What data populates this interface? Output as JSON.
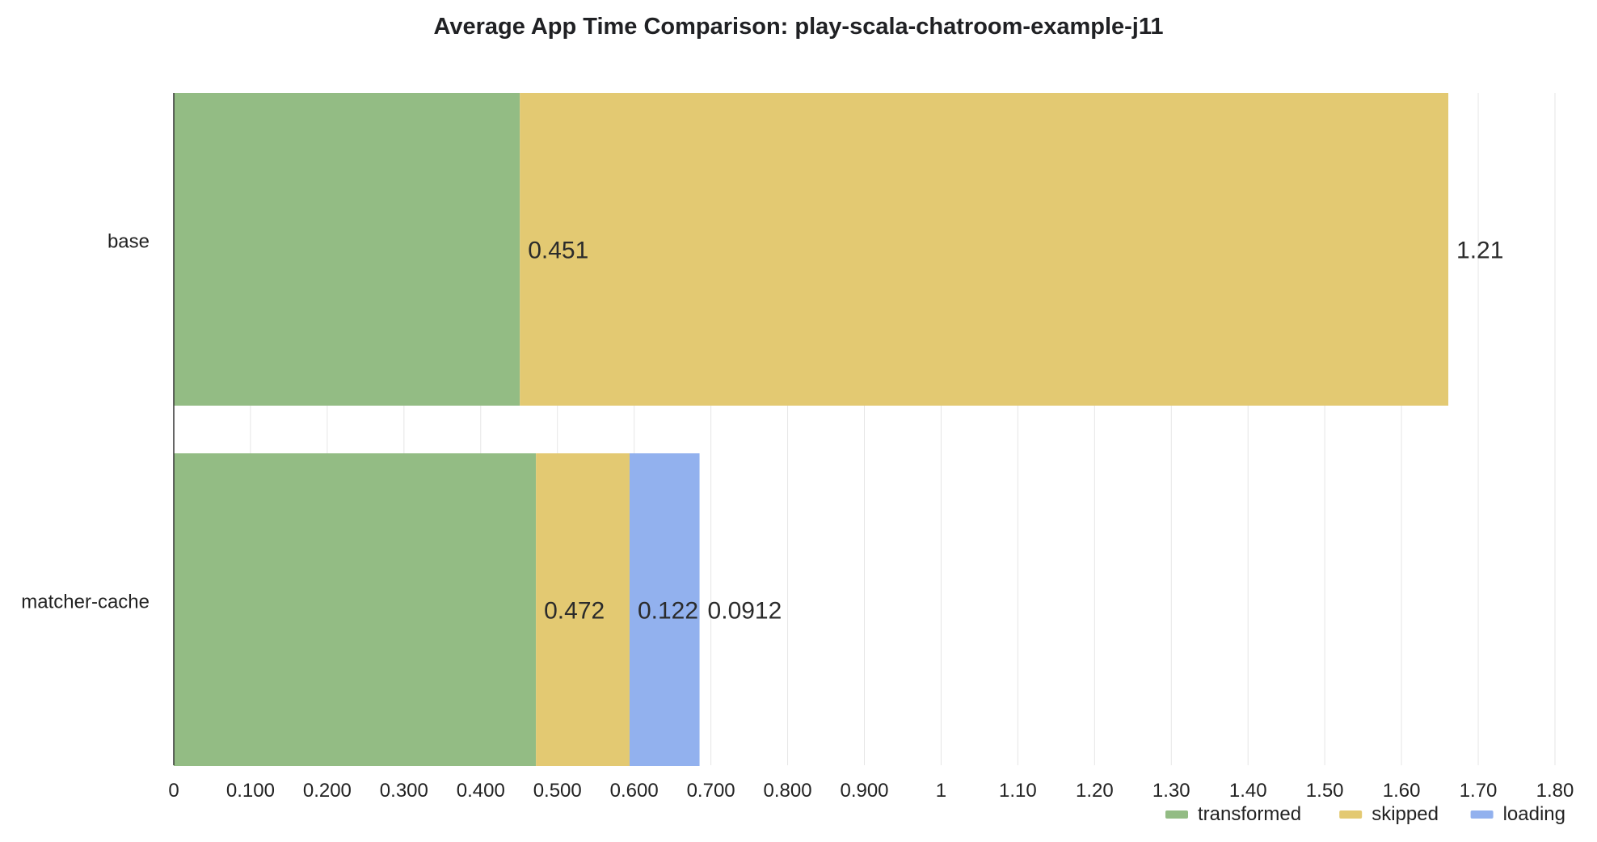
{
  "chart_data": {
    "type": "bar",
    "orientation": "horizontal",
    "stacked": true,
    "title": "Average App Time Comparison: play-scala-chatroom-example-j11",
    "xlabel": "",
    "ylabel": "",
    "xlim": [
      0,
      1.8
    ],
    "ticks": [
      {
        "value": 0,
        "label": "0"
      },
      {
        "value": 0.1,
        "label": "0.100"
      },
      {
        "value": 0.2,
        "label": "0.200"
      },
      {
        "value": 0.3,
        "label": "0.300"
      },
      {
        "value": 0.4,
        "label": "0.400"
      },
      {
        "value": 0.5,
        "label": "0.500"
      },
      {
        "value": 0.6,
        "label": "0.600"
      },
      {
        "value": 0.7,
        "label": "0.700"
      },
      {
        "value": 0.8,
        "label": "0.800"
      },
      {
        "value": 0.9,
        "label": "0.900"
      },
      {
        "value": 1.0,
        "label": "1"
      },
      {
        "value": 1.1,
        "label": "1.10"
      },
      {
        "value": 1.2,
        "label": "1.20"
      },
      {
        "value": 1.3,
        "label": "1.30"
      },
      {
        "value": 1.4,
        "label": "1.40"
      },
      {
        "value": 1.5,
        "label": "1.50"
      },
      {
        "value": 1.6,
        "label": "1.60"
      },
      {
        "value": 1.7,
        "label": "1.70"
      },
      {
        "value": 1.8,
        "label": "1.80"
      }
    ],
    "grid": true,
    "legend_position": "bottom-right",
    "categories": [
      "base",
      "matcher-cache"
    ],
    "series": [
      {
        "name": "transformed",
        "color": "#93bc84",
        "values": [
          0.451,
          0.472
        ],
        "labels": [
          "0.451",
          "0.472"
        ]
      },
      {
        "name": "skipped",
        "color": "#e3c972",
        "values": [
          1.21,
          0.122
        ],
        "labels": [
          "1.21",
          "0.122"
        ]
      },
      {
        "name": "loading",
        "color": "#92b1ee",
        "values": [
          0,
          0.0912
        ],
        "labels": [
          "",
          "0.0912"
        ]
      }
    ]
  }
}
